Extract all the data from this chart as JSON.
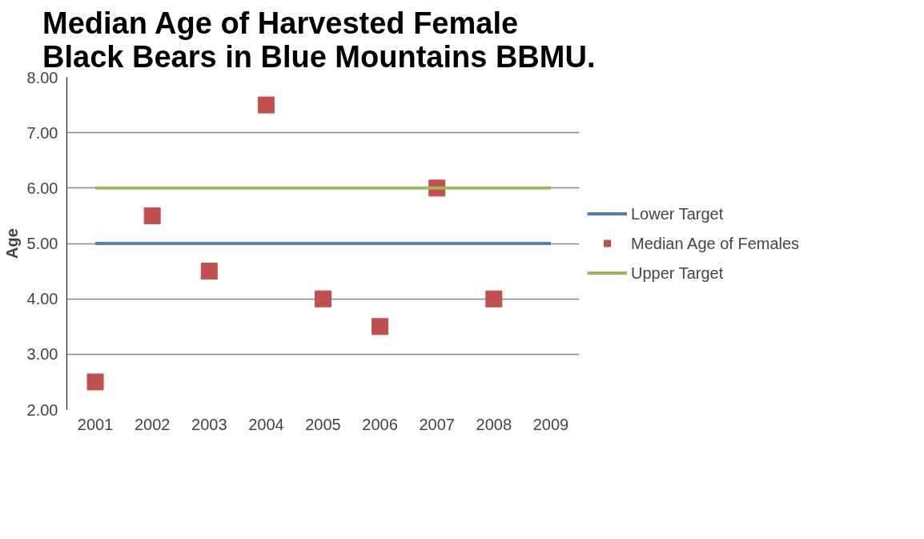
{
  "chart_data": {
    "type": "line",
    "title": "Median Age of Harvested Female\nBlack Bears in Blue Mountains  BBMU.",
    "ylabel": "Age",
    "categories": [
      "2001",
      "2002",
      "2003",
      "2004",
      "2005",
      "2006",
      "2007",
      "2008",
      "2009"
    ],
    "series": [
      {
        "name": "Lower Target",
        "color": "#4f81bd",
        "marker": "none",
        "values": [
          5,
          5,
          5,
          5,
          5,
          5,
          5,
          5,
          5
        ]
      },
      {
        "name": "Median Age of Females",
        "type": "scatter",
        "color": "#c0504d",
        "marker": "square",
        "values": [
          2.5,
          5.5,
          4.5,
          7.5,
          4,
          3.5,
          6,
          4,
          null
        ]
      },
      {
        "name": "Upper Target",
        "color": "#9bbb59",
        "marker": "none",
        "values": [
          6,
          6,
          6,
          6,
          6,
          6,
          6,
          6,
          6
        ]
      }
    ],
    "ylim": [
      2,
      8
    ],
    "yticks": [
      {
        "value": 2,
        "label": "2.00"
      },
      {
        "value": 3,
        "label": "3.00"
      },
      {
        "value": 4,
        "label": "4.00"
      },
      {
        "value": 5,
        "label": "5.00"
      },
      {
        "value": 6,
        "label": "6.00"
      },
      {
        "value": 7,
        "label": "7.00"
      },
      {
        "value": 8,
        "label": "8.00"
      }
    ],
    "grid": "y",
    "legend": "right"
  }
}
